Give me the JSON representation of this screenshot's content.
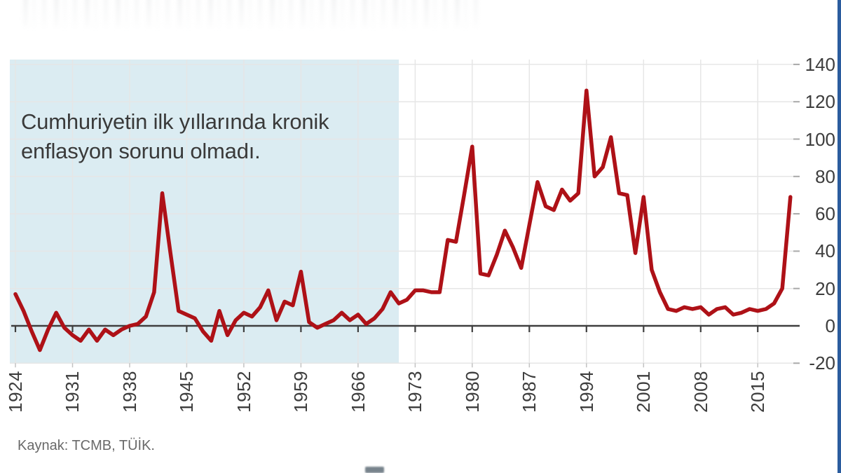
{
  "annotation": {
    "line1": "Cumhuriyetin ilk yıllarında kronik",
    "line2": "enflasyon sorunu olmadı."
  },
  "source": {
    "label": "Kaynak: TCMB, TÜİK."
  },
  "colors": {
    "line": "#ae1117",
    "shade": "#dbecf2",
    "axis": "#3f3f3f",
    "grid": "#e6e6e6",
    "tick_minor": "#c2c2c2",
    "right_axis_dash": "#a9a9a9",
    "label_text": "#3d3d3d",
    "annotation_text": "#3a3a3a",
    "source_text": "#696969",
    "right_border": "#2b5c9e"
  },
  "chart_data": {
    "type": "line",
    "annotation": "Cumhuriyetin ilk yıllarında kronik enflasyon sorunu olmadı.",
    "x": [
      1924,
      1925,
      1926,
      1927,
      1928,
      1929,
      1930,
      1931,
      1932,
      1933,
      1934,
      1935,
      1936,
      1937,
      1938,
      1939,
      1940,
      1941,
      1942,
      1943,
      1944,
      1945,
      1946,
      1947,
      1948,
      1949,
      1950,
      1951,
      1952,
      1953,
      1954,
      1955,
      1956,
      1957,
      1958,
      1959,
      1960,
      1961,
      1962,
      1963,
      1964,
      1965,
      1966,
      1967,
      1968,
      1969,
      1970,
      1971,
      1972,
      1973,
      1974,
      1975,
      1976,
      1977,
      1978,
      1979,
      1980,
      1981,
      1982,
      1983,
      1984,
      1985,
      1986,
      1987,
      1988,
      1989,
      1990,
      1991,
      1992,
      1993,
      1994,
      1995,
      1996,
      1997,
      1998,
      1999,
      2000,
      2001,
      2002,
      2003,
      2004,
      2005,
      2006,
      2007,
      2008,
      2009,
      2010,
      2011,
      2012,
      2013,
      2014,
      2015,
      2016,
      2017,
      2018,
      2019
    ],
    "values": [
      17,
      8,
      -3,
      -13,
      -2,
      7,
      -1,
      -5,
      -8,
      -2,
      -8,
      -2,
      -5,
      -2,
      0,
      1,
      5,
      18,
      71,
      39,
      8,
      6,
      4,
      -3,
      -8,
      8,
      -5,
      3,
      7,
      5,
      10,
      19,
      3,
      13,
      11,
      29,
      2,
      -1,
      1,
      3,
      7,
      3,
      6,
      1,
      4,
      9,
      18,
      12,
      14,
      19,
      19,
      18,
      18,
      46,
      45,
      70,
      96,
      28,
      27,
      38,
      51,
      42,
      31,
      54,
      77,
      64,
      62,
      73,
      67,
      71,
      126,
      80,
      85,
      101,
      71,
      70,
      39,
      69,
      30,
      18,
      9,
      8,
      10,
      9,
      10,
      6,
      9,
      10,
      6,
      7,
      9,
      8,
      9,
      12,
      20,
      69
    ],
    "x_ticks": [
      1924,
      1931,
      1938,
      1945,
      1952,
      1959,
      1966,
      1973,
      1980,
      1987,
      1994,
      2001,
      2008,
      2015
    ],
    "y_ticks": [
      140,
      120,
      100,
      80,
      60,
      40,
      20,
      0,
      -20
    ],
    "ylim": [
      -20,
      142
    ],
    "xlim": [
      1924,
      2020
    ],
    "grid": true,
    "line_color": "#ae1117",
    "shaded_region": {
      "to_year": 1971,
      "color": "#dbecf2"
    }
  }
}
